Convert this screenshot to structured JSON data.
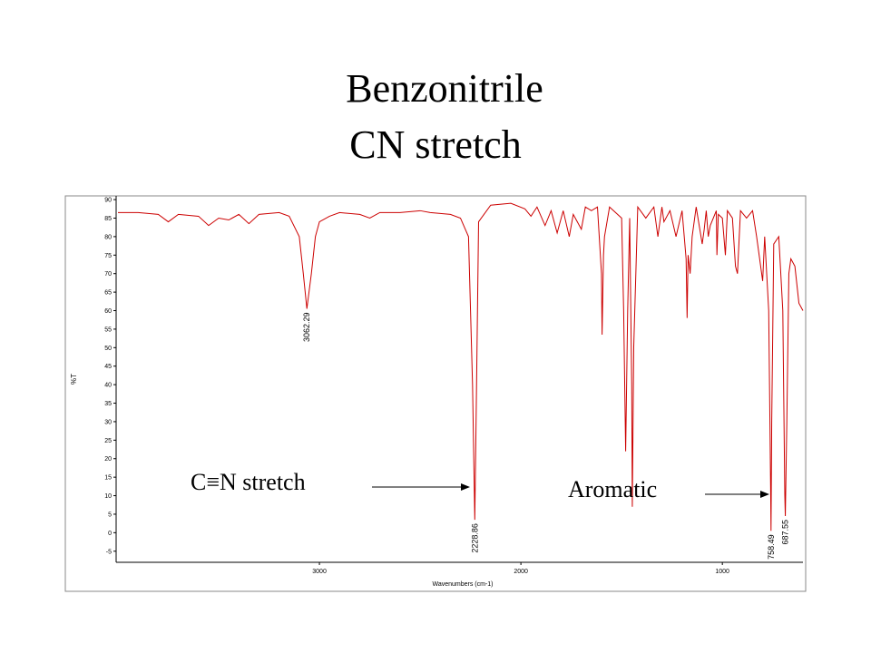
{
  "chart_data": {
    "type": "line",
    "title": "Benzonitrile",
    "subtitle": "CN stretch",
    "x_label": "Wavenumbers (cm-1)",
    "y_label": "%T",
    "xlim": [
      4000,
      600
    ],
    "ylim": [
      -8,
      91
    ],
    "xticks": [
      3000,
      2000,
      1000
    ],
    "yticks": [
      -5,
      0,
      5,
      10,
      15,
      20,
      25,
      30,
      35,
      40,
      45,
      50,
      55,
      60,
      65,
      70,
      75,
      80,
      85,
      90
    ],
    "x": [
      4000,
      3900,
      3800,
      3750,
      3700,
      3600,
      3550,
      3500,
      3450,
      3400,
      3350,
      3300,
      3200,
      3150,
      3100,
      3080,
      3062.29,
      3040,
      3020,
      3000,
      2950,
      2900,
      2800,
      2750,
      2700,
      2600,
      2500,
      2450,
      2350,
      2300,
      2260,
      2240,
      2228.86,
      2220,
      2210,
      2150,
      2050,
      1980,
      1950,
      1920,
      1880,
      1850,
      1820,
      1790,
      1760,
      1740,
      1700,
      1680,
      1650,
      1620,
      1600,
      1597,
      1590,
      1585,
      1560,
      1500,
      1490,
      1480,
      1470,
      1460,
      1450,
      1447,
      1440,
      1420,
      1380,
      1340,
      1320,
      1300,
      1290,
      1260,
      1230,
      1200,
      1180,
      1175,
      1170,
      1160,
      1150,
      1130,
      1100,
      1090,
      1080,
      1070,
      1060,
      1030,
      1027,
      1020,
      1000,
      985,
      975,
      950,
      935,
      925,
      910,
      880,
      850,
      830,
      800,
      790,
      770,
      760,
      758.49,
      755,
      745,
      720,
      700,
      690,
      687.55,
      680,
      670,
      660,
      640,
      620,
      600
    ],
    "series": [
      {
        "name": "%T",
        "color": "#cc0000",
        "values": [
          86.5,
          86.5,
          86,
          84,
          86,
          85.5,
          83,
          85,
          84.5,
          86,
          83.5,
          86,
          86.5,
          85.5,
          80,
          70,
          60.5,
          70,
          80,
          84,
          85.5,
          86.5,
          86,
          85,
          86.5,
          86.5,
          87,
          86.5,
          86,
          85,
          80,
          40,
          3.5,
          40,
          84,
          88.5,
          89,
          87.5,
          85.5,
          88,
          83,
          87,
          81,
          87,
          80,
          86,
          82,
          88,
          87,
          88,
          70,
          53.5,
          75,
          80,
          88,
          85,
          60,
          22,
          60,
          85,
          40,
          7,
          50,
          88,
          85,
          88,
          80,
          88,
          84,
          87,
          80,
          87,
          74,
          58,
          75,
          70,
          80,
          88,
          78,
          82,
          87,
          80,
          83,
          87,
          75,
          86,
          85,
          75,
          87,
          85,
          72,
          70,
          87,
          85,
          87,
          80,
          68,
          80,
          60,
          10,
          0.5,
          30,
          78,
          80,
          60,
          10,
          4.5,
          30,
          70,
          74,
          72,
          62,
          60
        ]
      }
    ],
    "peak_labels": [
      3062.29,
      2228.86,
      758.49,
      687.55
    ],
    "annotations": [
      "C≡N stretch",
      "Aromatic"
    ]
  }
}
